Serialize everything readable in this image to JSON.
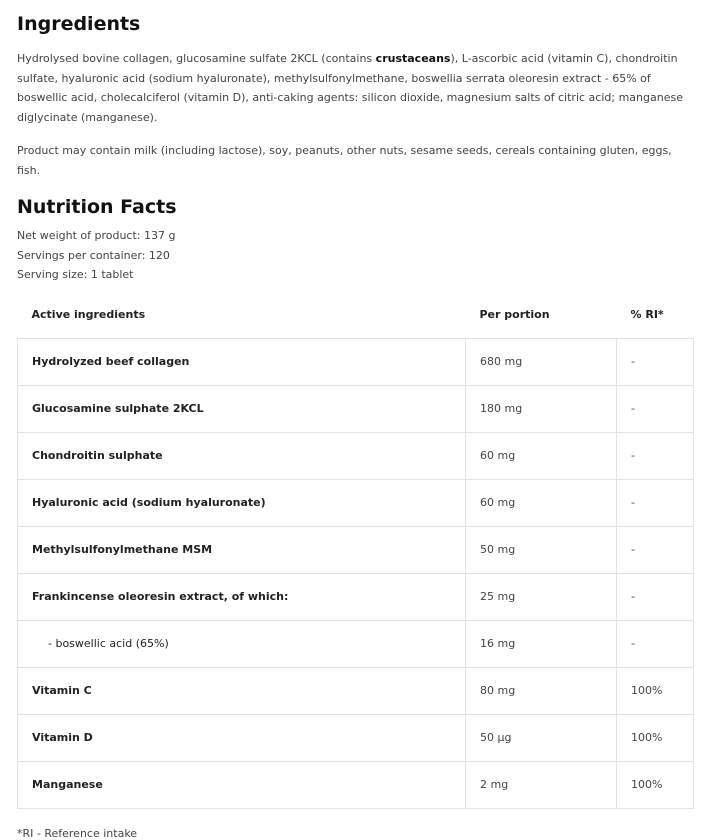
{
  "ingredients": {
    "title": "Ingredients",
    "text_before": "Hydrolysed bovine collagen, glucosamine sulfate 2KCL (contains ",
    "text_bold": "crustaceans",
    "text_after": "), L-ascorbic acid (vitamin C), chondroitin sulfate, hyaluronic acid (sodium hyaluronate), methylsulfonylmethane, boswellia serrata oleoresin extract - 65% of boswellic acid, cholecalciferol (vitamin D), anti-caking agents: silicon dioxide, magnesium salts of citric acid; manganese diglycinate (manganese).",
    "allergen": "Product may contain milk (including lactose), soy, peanuts, other nuts, sesame seeds, cereals containing gluten, eggs, fish."
  },
  "nutrition": {
    "title": "Nutrition Facts",
    "net_weight": "Net weight of product: 137 g",
    "servings": "Servings per container: 120",
    "serving_size": "Serving size: 1 tablet",
    "headers": [
      "Active ingredients",
      "Per portion",
      "% RI*"
    ],
    "rows": [
      {
        "name": "Hydrolyzed beef collagen",
        "amount": "680 mg",
        "ri": "-"
      },
      {
        "name": "Glucosamine sulphate 2KCL",
        "amount": "180 mg",
        "ri": "-"
      },
      {
        "name": "Chondroitin sulphate",
        "amount": "60 mg",
        "ri": "-"
      },
      {
        "name": "Hyaluronic acid (sodium hyaluronate)",
        "amount": "60 mg",
        "ri": "-"
      },
      {
        "name": "Methylsulfonylmethane MSM",
        "amount": "50 mg",
        "ri": "-"
      },
      {
        "name": "Frankincense oleoresin extract, of which:",
        "amount": "25 mg",
        "ri": "-"
      },
      {
        "name": "- boswellic acid (65%)",
        "amount": "16 mg",
        "ri": "-",
        "sub": true
      },
      {
        "name": "Vitamin C",
        "amount": "80 mg",
        "ri": "100%"
      },
      {
        "name": "Vitamin D",
        "amount": "50 µg",
        "ri": "100%"
      },
      {
        "name": "Manganese",
        "amount": "2 mg",
        "ri": "100%"
      }
    ],
    "footnote": "*RI - Reference intake"
  }
}
